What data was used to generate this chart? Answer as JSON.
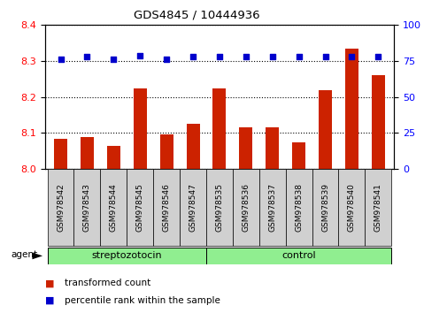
{
  "title": "GDS4845 / 10444936",
  "samples": [
    "GSM978542",
    "GSM978543",
    "GSM978544",
    "GSM978545",
    "GSM978546",
    "GSM978547",
    "GSM978535",
    "GSM978536",
    "GSM978537",
    "GSM978538",
    "GSM978539",
    "GSM978540",
    "GSM978541"
  ],
  "red_values": [
    8.085,
    8.088,
    8.065,
    8.225,
    8.095,
    8.125,
    8.225,
    8.115,
    8.115,
    8.075,
    8.22,
    8.335,
    8.26
  ],
  "blue_values": [
    76,
    78,
    76,
    79,
    76,
    78,
    78,
    78,
    78,
    78,
    78,
    78,
    78
  ],
  "groups": [
    {
      "label": "streptozotocin",
      "start": 0,
      "end": 6
    },
    {
      "label": "control",
      "start": 6,
      "end": 13
    }
  ],
  "group_label": "agent",
  "ylim_left": [
    8.0,
    8.4
  ],
  "ylim_right": [
    0,
    100
  ],
  "yticks_left": [
    8.0,
    8.1,
    8.2,
    8.3,
    8.4
  ],
  "yticks_right": [
    0,
    25,
    50,
    75,
    100
  ],
  "bar_color": "#CC2200",
  "dot_color": "#0000CC",
  "bg_color": "#FFFFFF",
  "cell_bg": "#D0D0D0",
  "group_color": "#90EE90",
  "legend_items": [
    {
      "label": "transformed count",
      "color": "#CC2200"
    },
    {
      "label": "percentile rank within the sample",
      "color": "#0000CC"
    }
  ]
}
